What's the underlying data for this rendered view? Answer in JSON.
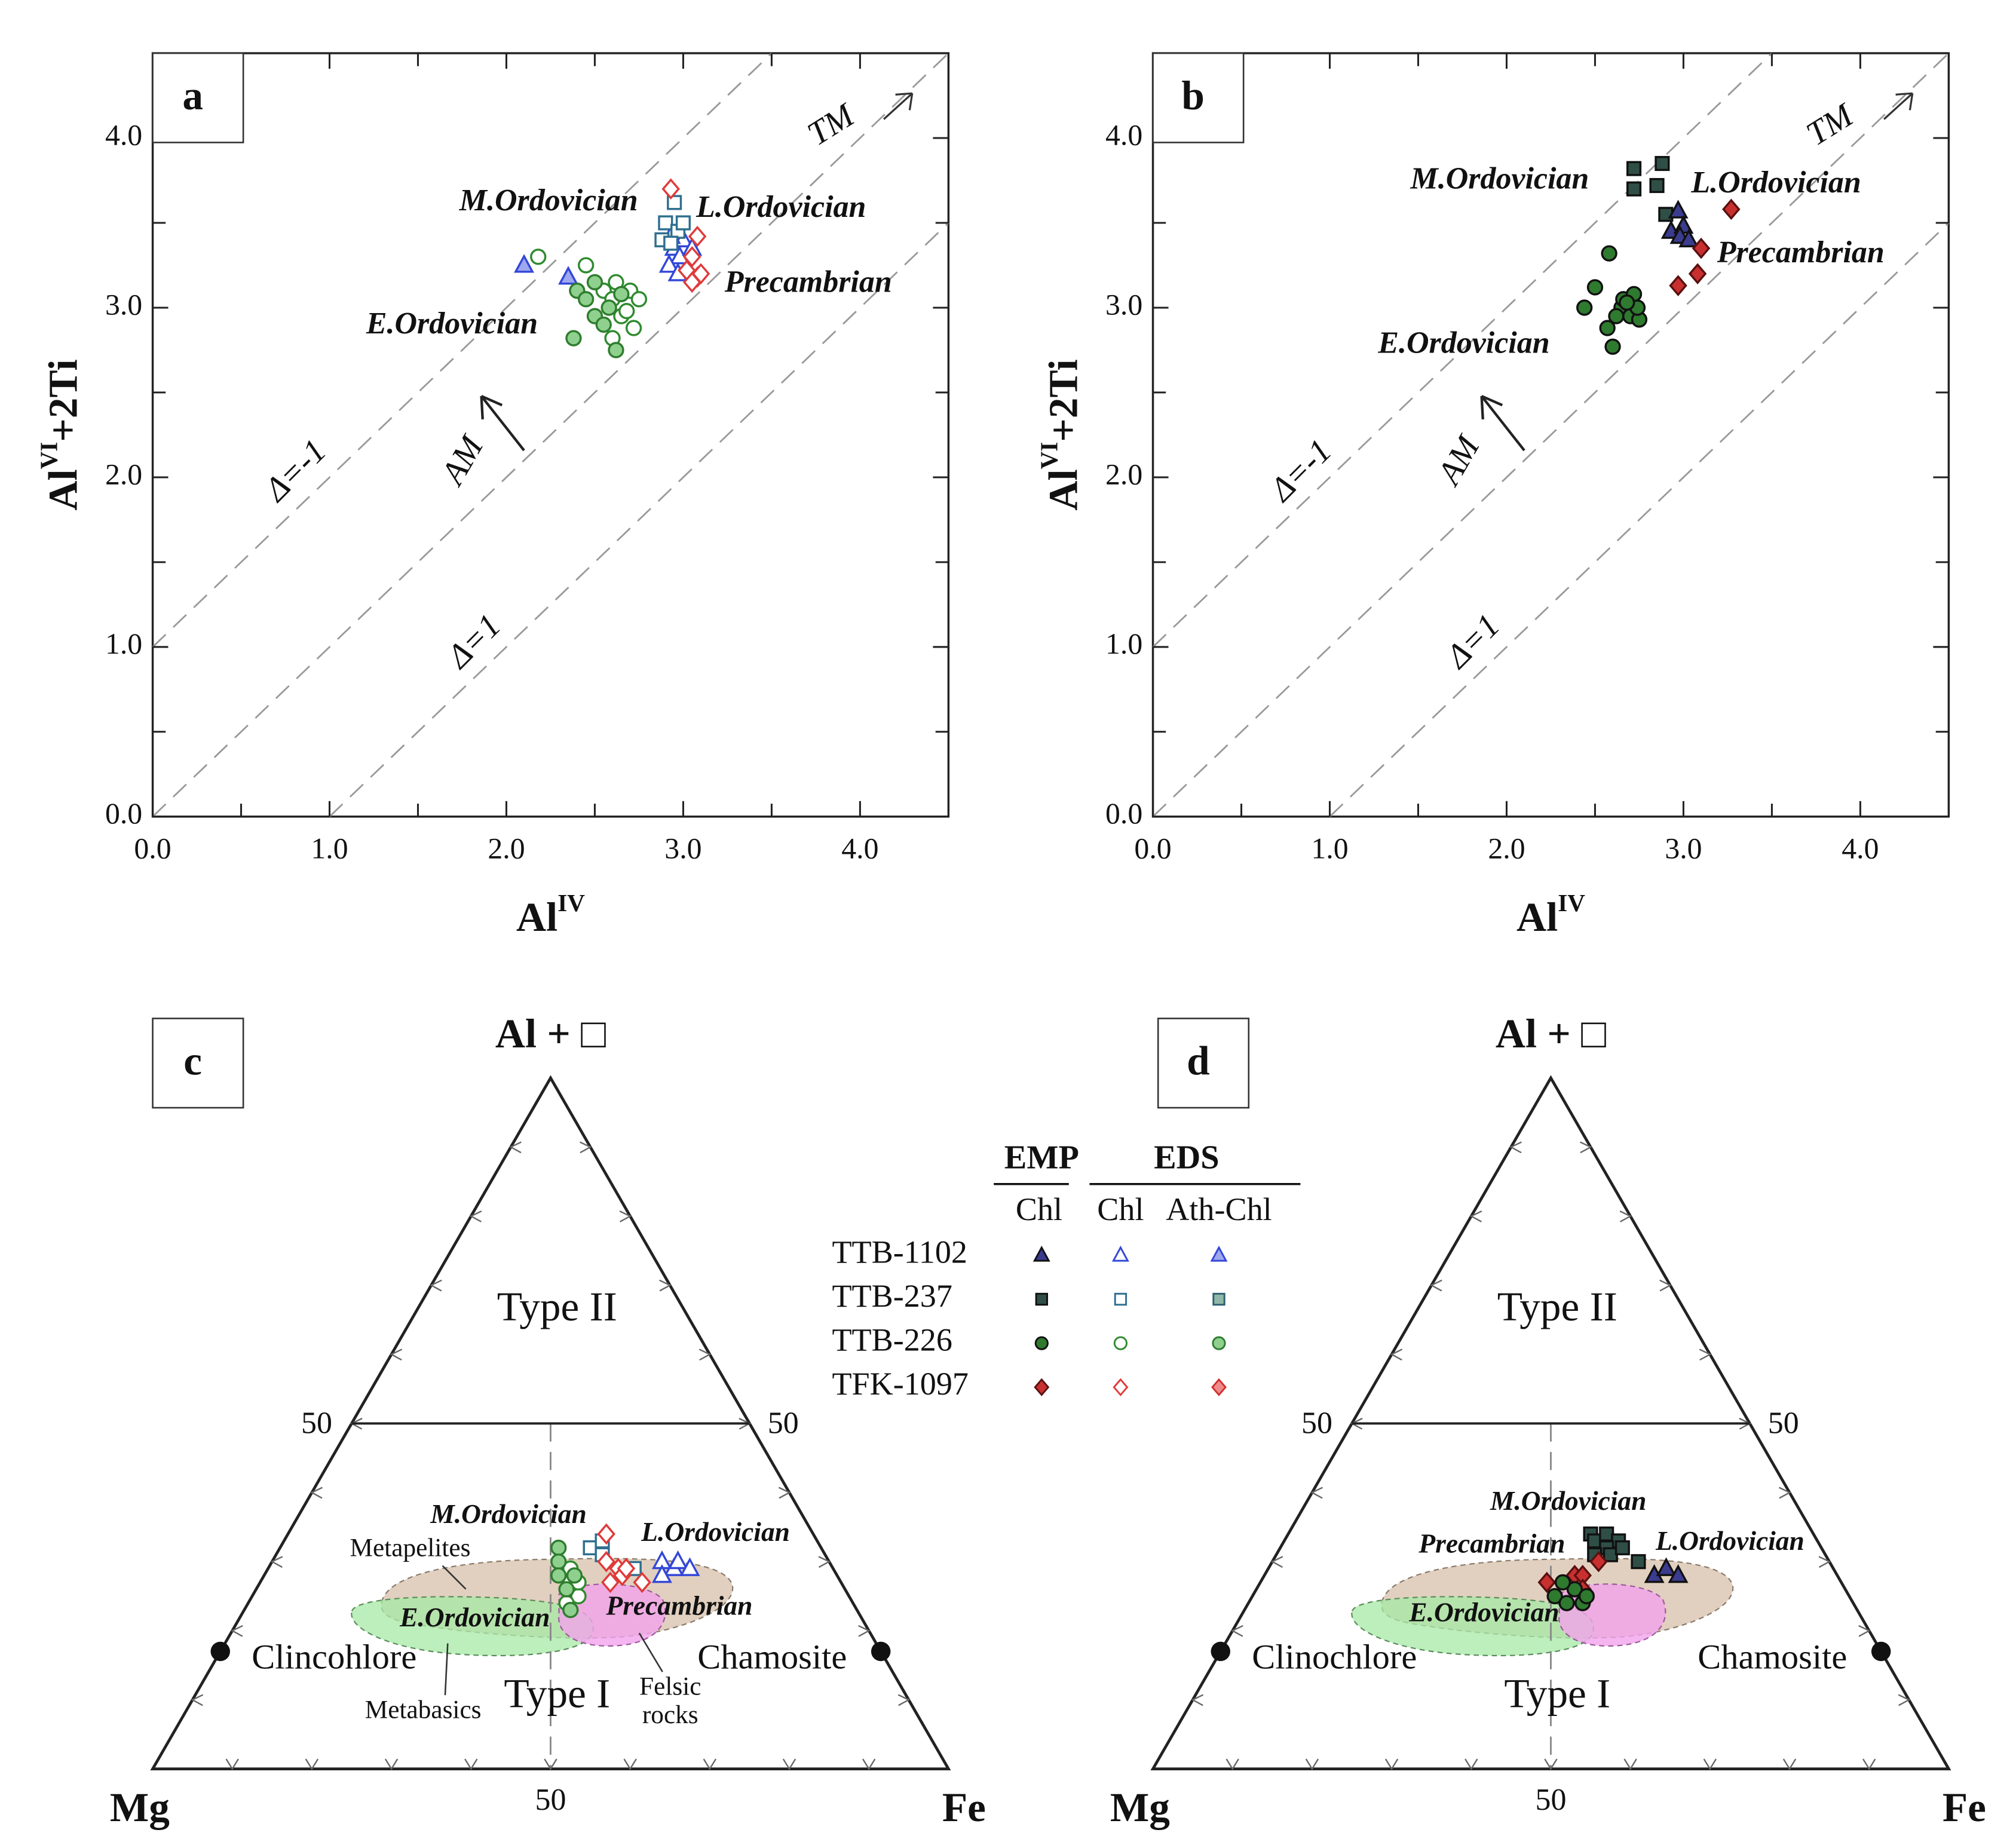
{
  "chart_data": [
    {
      "type": "scatter",
      "panel": "a",
      "xlabel": {
        "base": "Al",
        "sup": "IV"
      },
      "ylabel": {
        "base": "Al",
        "sup": "VI",
        "rest": "+2Ti"
      },
      "xlim": [
        0,
        4.5
      ],
      "ylim": [
        0,
        4.5
      ],
      "xticks": [
        {
          "value": 0,
          "label": "0.0"
        },
        {
          "value": 1,
          "label": "1.0"
        },
        {
          "value": 2,
          "label": "2.0"
        },
        {
          "value": 3,
          "label": "3.0"
        },
        {
          "value": 4,
          "label": "4.0"
        }
      ],
      "yticks": [
        {
          "value": 0,
          "label": "0.0"
        },
        {
          "value": 1,
          "label": "1.0"
        },
        {
          "value": 2,
          "label": "2.0"
        },
        {
          "value": 3,
          "label": "3.0"
        },
        {
          "value": 4,
          "label": "4.0"
        }
      ],
      "xminor": [
        0.5,
        1.5,
        2.5,
        3.5
      ],
      "yminor": [
        0.5,
        1.5,
        2.5,
        3.5
      ],
      "reference_lines": [
        {
          "delta": -1,
          "label": "Δ=-1"
        },
        {
          "delta": 0
        },
        {
          "delta": 1,
          "label": "Δ=1"
        }
      ],
      "annotations": [
        {
          "text": "M.Ordovician",
          "color": "#1e3a4a"
        },
        {
          "text": "L.Ordovician",
          "color": "#1a1a8a"
        },
        {
          "text": "Precambrian",
          "color": "#8b1a1a"
        },
        {
          "text": "E.Ordovician",
          "color": "#1f5a1f"
        },
        {
          "text": "TM",
          "color": "#333333"
        },
        {
          "text": "AM",
          "color": "#333333"
        }
      ],
      "series": [
        {
          "marker": "triangle",
          "stroke": "#3347d9",
          "fill": "#9ea8ee",
          "x": [
            2.1,
            2.35
          ],
          "y": [
            3.25,
            3.18
          ]
        },
        {
          "marker": "triangle",
          "stroke": "#3347d9",
          "fill": "#ffffff",
          "x": [
            2.95,
            2.98,
            3.0,
            2.92,
            2.97,
            3.05,
            2.93
          ],
          "y": [
            3.35,
            3.3,
            3.4,
            3.25,
            3.2,
            3.35,
            3.42
          ]
        },
        {
          "marker": "square",
          "stroke": "#2f6f8f",
          "fill": "#ffffff",
          "x": [
            2.95,
            2.9,
            2.88,
            2.97,
            3.0,
            2.93
          ],
          "y": [
            3.62,
            3.5,
            3.4,
            3.45,
            3.5,
            3.38
          ]
        },
        {
          "marker": "diamond",
          "stroke": "#e03a3a",
          "fill": "#ffffff",
          "x": [
            2.93,
            3.08,
            3.05,
            3.02,
            3.08,
            3.1,
            3.05
          ],
          "y": [
            3.7,
            3.42,
            3.3,
            3.22,
            3.18,
            3.2,
            3.15
          ]
        },
        {
          "marker": "circle",
          "stroke": "#2e8b2e",
          "fill": "#ffffff",
          "x": [
            2.18,
            2.45,
            2.55,
            2.6,
            2.7,
            2.75,
            2.65,
            2.72,
            2.6,
            2.68,
            2.62
          ],
          "y": [
            3.3,
            3.25,
            3.1,
            3.05,
            3.1,
            3.05,
            2.95,
            2.88,
            2.82,
            2.98,
            3.15
          ]
        },
        {
          "marker": "circle",
          "stroke": "#2e7d2e",
          "fill": "#8fd08f",
          "x": [
            2.4,
            2.45,
            2.5,
            2.55,
            2.38,
            2.58,
            2.62,
            2.65,
            2.5
          ],
          "y": [
            3.1,
            3.05,
            2.95,
            2.9,
            2.82,
            3.0,
            2.75,
            3.08,
            3.15
          ]
        }
      ]
    },
    {
      "type": "scatter",
      "panel": "b",
      "xlabel": {
        "base": "Al",
        "sup": "IV"
      },
      "ylabel": {
        "base": "Al",
        "sup": "VI",
        "rest": "+2Ti"
      },
      "xlim": [
        0,
        4.5
      ],
      "ylim": [
        0,
        4.5
      ],
      "xticks": [
        {
          "value": 0,
          "label": "0.0"
        },
        {
          "value": 1,
          "label": "1.0"
        },
        {
          "value": 2,
          "label": "2.0"
        },
        {
          "value": 3,
          "label": "3.0"
        },
        {
          "value": 4,
          "label": "4.0"
        }
      ],
      "yticks": [
        {
          "value": 0,
          "label": "0.0"
        },
        {
          "value": 1,
          "label": "1.0"
        },
        {
          "value": 2,
          "label": "2.0"
        },
        {
          "value": 3,
          "label": "3.0"
        },
        {
          "value": 4,
          "label": "4.0"
        }
      ],
      "xminor": [
        0.5,
        1.5,
        2.5,
        3.5
      ],
      "yminor": [
        0.5,
        1.5,
        2.5,
        3.5
      ],
      "reference_lines": [
        {
          "delta": -1,
          "label": "Δ=-1"
        },
        {
          "delta": 0
        },
        {
          "delta": 1,
          "label": "Δ=1"
        }
      ],
      "annotations": [
        {
          "text": "M.Ordovician",
          "color": "#1e3a4a"
        },
        {
          "text": "L.Ordovician",
          "color": "#1a1a8a"
        },
        {
          "text": "Precambrian",
          "color": "#8b1a1a"
        },
        {
          "text": "E.Ordovician",
          "color": "#1f5a1f"
        },
        {
          "text": "TM",
          "color": "#333333"
        },
        {
          "text": "AM",
          "color": "#333333"
        }
      ],
      "series": [
        {
          "marker": "square",
          "stroke": "#111111",
          "fill": "#2f4f46",
          "x": [
            2.72,
            2.88,
            2.72,
            2.85,
            2.9
          ],
          "y": [
            3.82,
            3.85,
            3.7,
            3.72,
            3.55
          ]
        },
        {
          "marker": "triangle",
          "stroke": "#111111",
          "fill": "#3b3b8f",
          "x": [
            2.97,
            2.93,
            3.0,
            2.98,
            3.03
          ],
          "y": [
            3.57,
            3.45,
            3.48,
            3.42,
            3.4
          ]
        },
        {
          "marker": "diamond",
          "stroke": "#5a1010",
          "fill": "#c83030",
          "x": [
            3.27,
            3.1,
            3.08,
            2.97
          ],
          "y": [
            3.58,
            3.35,
            3.2,
            3.13
          ]
        },
        {
          "marker": "circle",
          "stroke": "#111111",
          "fill": "#2e7a2e",
          "x": [
            2.58,
            2.44,
            2.5,
            2.57,
            2.6,
            2.65,
            2.66,
            2.7,
            2.72,
            2.75,
            2.74,
            2.62,
            2.68
          ],
          "y": [
            3.32,
            3.0,
            3.12,
            2.88,
            2.77,
            3.0,
            3.05,
            2.95,
            3.08,
            2.93,
            3.0,
            2.95,
            3.03
          ]
        }
      ]
    },
    {
      "type": "ternary",
      "panel": "c",
      "vertices": [
        "Al + □",
        "Mg",
        "Fe"
      ],
      "ticks": [
        10,
        20,
        30,
        40,
        50,
        60,
        70,
        80,
        90
      ],
      "labeled_ticks": [
        50
      ],
      "regions": [
        "Type II",
        "Type I"
      ],
      "end_members": [
        {
          "name": "Clincohlore",
          "al": 17,
          "fe": 0
        },
        {
          "name": "Chamosite",
          "al": 17,
          "fe": 83
        }
      ],
      "fields": [
        {
          "lines": [
            "Metapelites"
          ]
        },
        {
          "lines": [
            "Metabasics"
          ]
        },
        {
          "lines": [
            "Felsic",
            "rocks"
          ]
        }
      ],
      "annotations": [
        {
          "text": "M.Ordovician",
          "color": "#1e3a4a"
        },
        {
          "text": "L.Ordovician",
          "color": "#1a1a8a"
        },
        {
          "text": "E.Ordovician",
          "color": "#1f5a1f"
        },
        {
          "text": "Precambrian",
          "color": "#8b1a1a"
        }
      ],
      "series": [
        {
          "marker": "circle",
          "stroke": "#2e8b2e",
          "fill": "#ffffff",
          "al": [
            29,
            27,
            25,
            24,
            27,
            29
          ],
          "fe": [
            37,
            39,
            41,
            40,
            40,
            38
          ]
        },
        {
          "marker": "circle",
          "stroke": "#2e7d2e",
          "fill": "#8fd08f",
          "al": [
            32,
            30,
            28,
            26,
            28,
            23
          ],
          "fe": [
            35,
            36,
            37,
            39,
            39,
            41
          ]
        },
        {
          "marker": "square",
          "stroke": "#2f6f8f",
          "fill": "#ffffff",
          "al": [
            32,
            33,
            31,
            29
          ],
          "fe": [
            39,
            40,
            41,
            46
          ]
        },
        {
          "marker": "diamond",
          "stroke": "#e03a3a",
          "fill": "#ffffff",
          "al": [
            34,
            30,
            29,
            28,
            29,
            27,
            27
          ],
          "fe": [
            40,
            42,
            44,
            45,
            45,
            44,
            48
          ]
        },
        {
          "marker": "triangle",
          "stroke": "#3347d9",
          "fill": "#ffffff",
          "al": [
            30,
            29,
            30,
            29,
            28
          ],
          "fe": [
            49,
            51,
            51,
            53,
            50
          ]
        }
      ]
    },
    {
      "type": "ternary",
      "panel": "d",
      "vertices": [
        "Al + □",
        "Mg",
        "Fe"
      ],
      "ticks": [
        10,
        20,
        30,
        40,
        50,
        60,
        70,
        80,
        90
      ],
      "labeled_ticks": [
        50
      ],
      "regions": [
        "Type II",
        "Type I"
      ],
      "end_members": [
        {
          "name": "Clinochlore",
          "al": 17,
          "fe": 0
        },
        {
          "name": "Chamosite",
          "al": 17,
          "fe": 83
        }
      ],
      "fields": [],
      "annotations": [
        {
          "text": "M.Ordovician",
          "color": "#1e3a4a"
        },
        {
          "text": "L.Ordovician",
          "color": "#1a1a8a"
        },
        {
          "text": "E.Ordovician",
          "color": "#1f5a1f"
        },
        {
          "text": "Precambrian",
          "color": "#8b1a1a"
        }
      ],
      "series": [
        {
          "marker": "square",
          "stroke": "#111111",
          "fill": "#2f4f46",
          "al": [
            34,
            33,
            34,
            33,
            32,
            31,
            32,
            30,
            31
          ],
          "fe": [
            38,
            39,
            40,
            42,
            41,
            42,
            43,
            46,
            40
          ]
        },
        {
          "marker": "triangle",
          "stroke": "#111111",
          "fill": "#3b3b8f",
          "al": [
            28,
            29,
            28
          ],
          "fe": [
            49,
            50,
            52
          ]
        },
        {
          "marker": "diamond",
          "stroke": "#5a1010",
          "fill": "#c83030",
          "al": [
            27,
            28,
            28,
            30,
            26
          ],
          "fe": [
            36,
            39,
            40,
            41,
            41
          ]
        },
        {
          "marker": "circle",
          "stroke": "#111111",
          "fill": "#2e7a2e",
          "al": [
            25,
            24,
            24,
            26,
            25,
            27
          ],
          "fe": [
            38,
            40,
            42,
            40,
            42,
            38
          ]
        }
      ]
    }
  ],
  "legend": {
    "groups": [
      "EMP",
      "EDS"
    ],
    "columns": [
      "Chl",
      "Chl",
      "Ath-Chl"
    ],
    "rows": [
      {
        "name": "TTB-1102",
        "marker": "triangle",
        "styles": [
          {
            "stroke": "#111111",
            "fill": "#3b3b8f"
          },
          {
            "stroke": "#3347d9",
            "fill": "#ffffff"
          },
          {
            "stroke": "#3347d9",
            "fill": "#9ea8ee"
          }
        ]
      },
      {
        "name": "TTB-237",
        "marker": "square",
        "styles": [
          {
            "stroke": "#111111",
            "fill": "#2f4f46"
          },
          {
            "stroke": "#2f6f8f",
            "fill": "#ffffff"
          },
          {
            "stroke": "#2f5f6f",
            "fill": "#8fb8a8"
          }
        ]
      },
      {
        "name": "TTB-226",
        "marker": "circle",
        "styles": [
          {
            "stroke": "#111111",
            "fill": "#2e7a2e"
          },
          {
            "stroke": "#2e8b2e",
            "fill": "#ffffff"
          },
          {
            "stroke": "#2e7d2e",
            "fill": "#8fd08f"
          }
        ]
      },
      {
        "name": "TFK-1097",
        "marker": "diamond",
        "styles": [
          {
            "stroke": "#5a1010",
            "fill": "#c83030"
          },
          {
            "stroke": "#e03a3a",
            "fill": "#ffffff"
          },
          {
            "stroke": "#d03030",
            "fill": "#f08a8a"
          }
        ]
      }
    ]
  }
}
